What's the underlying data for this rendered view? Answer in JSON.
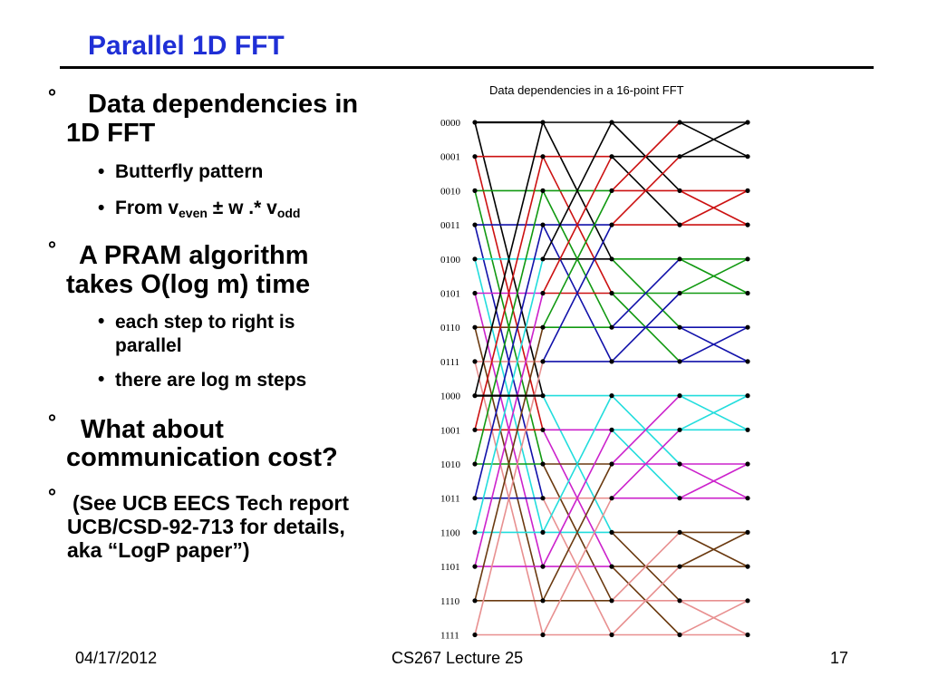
{
  "slide": {
    "title": "Parallel 1D FFT",
    "bullets": [
      {
        "marker": "°",
        "line1": "Data dependencies in",
        "line2": "1D FFT"
      },
      {
        "marker": "°",
        "line1": "A PRAM algorithm",
        "line2": "takes O(log m) time"
      },
      {
        "marker": "°",
        "line1": "What about",
        "line2": "communication cost?"
      },
      {
        "marker": "°",
        "line1": "(See UCB EECS Tech report",
        "line2": "UCB/CSD-92-713 for details,",
        "line3a": "aka ",
        "line3q1": "“",
        "line3b": "LogP paper",
        "line3q2": "”",
        "line3c": ")"
      }
    ],
    "subbullets": {
      "b1_1": "Butterfly pattern",
      "b1_2_pre": "From v",
      "b1_2_sub1": "even",
      "b1_2_mid": " ± w .* v",
      "b1_2_sub2": "odd",
      "b2_1_line1": "each step to right is",
      "b2_1_line2": "parallel",
      "b2_2": "there are log m steps"
    },
    "sub_marker": "•"
  },
  "figure": {
    "title": "Data dependencies in a 16-point FFT",
    "row_labels": [
      "0000",
      "0001",
      "0010",
      "0011",
      "0100",
      "0101",
      "0110",
      "0111",
      "1000",
      "1001",
      "1010",
      "1011",
      "1100",
      "1101",
      "1110",
      "1111"
    ],
    "row_colors": [
      "#000000",
      "#cc1111",
      "#119911",
      "#1111aa",
      "#22dddd",
      "#cc22cc",
      "#6b3a10",
      "#e89090",
      "#000000",
      "#cc1111",
      "#119911",
      "#1111aa",
      "#22dddd",
      "#cc22cc",
      "#6b3a10",
      "#e89090"
    ],
    "stage_colors": [
      [
        "#000000",
        "#cc1111",
        "#119911",
        "#1111aa",
        "#22dddd",
        "#cc22cc",
        "#6b3a10",
        "#e89090"
      ],
      [
        "#000000",
        "#cc1111",
        "#119911",
        "#1111aa",
        "#22dddd",
        "#cc22cc",
        "#6b3a10",
        "#e89090"
      ],
      [
        "#000000",
        "#cc1111",
        "#119911",
        "#1111aa",
        "#22dddd",
        "#cc22cc",
        "#6b3a10",
        "#e89090"
      ],
      [
        "#000000",
        "#cc1111",
        "#119911",
        "#1111aa",
        "#22dddd",
        "#cc22cc",
        "#6b3a10",
        "#e89090"
      ]
    ]
  },
  "footer": {
    "date": "04/17/2012",
    "course": "CS267 Lecture 25",
    "page": "17"
  }
}
